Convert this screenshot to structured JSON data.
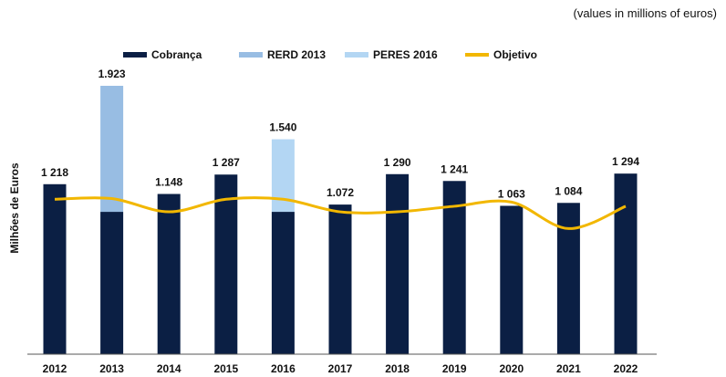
{
  "units_note": "(values in millions of euros)",
  "chart_data": {
    "type": "bar",
    "categories": [
      "2012",
      "2013",
      "2014",
      "2015",
      "2016",
      "2017",
      "2018",
      "2019",
      "2020",
      "2021",
      "2022"
    ],
    "series": [
      {
        "name": "Cobrança",
        "kind": "bar",
        "color": "#0b1f44",
        "values": [
          1218,
          1020,
          1148,
          1287,
          1020,
          1072,
          1290,
          1241,
          1063,
          1084,
          1294
        ]
      },
      {
        "name": "RERD 2013",
        "kind": "bar-stack",
        "color": "#98bde3",
        "values": [
          0,
          903,
          0,
          0,
          0,
          0,
          0,
          0,
          0,
          0,
          0
        ]
      },
      {
        "name": "PERES 2016",
        "kind": "bar-stack",
        "color": "#b3d6f3",
        "values": [
          0,
          0,
          0,
          0,
          520,
          0,
          0,
          0,
          0,
          0,
          0
        ]
      },
      {
        "name": "Objetivo",
        "kind": "line",
        "color": "#f2b700",
        "values": [
          1110,
          1115,
          1020,
          1110,
          1110,
          1020,
          1020,
          1060,
          1090,
          900,
          1060
        ]
      }
    ],
    "data_labels": [
      "1 218",
      "1.923",
      "1.148",
      "1 287",
      "1.540",
      "1.072",
      "1 290",
      "1 241",
      "1 063",
      "1 084",
      "1 294"
    ],
    "ylabel": "Milhões de Euros",
    "xlabel": "",
    "ylim": [
      0,
      1950
    ],
    "legend_position": "top-center",
    "grid": false
  }
}
